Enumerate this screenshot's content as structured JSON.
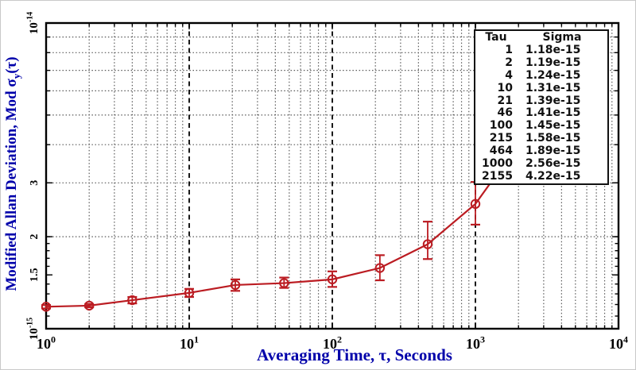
{
  "chart_data": {
    "type": "line",
    "title": "",
    "xlabel": "Averaging Time, τ, Seconds",
    "ylabel_parts": {
      "prefix": "Modified Allan Deviation, Mod σ",
      "sub": "y",
      "suffix": "(τ)"
    },
    "xscale": "log",
    "yscale": "log",
    "xlim": [
      1,
      10000
    ],
    "ylim": [
      1e-15,
      1e-14
    ],
    "grid": true,
    "x_major_ticks": [
      {
        "v": 1,
        "label": "10^0"
      },
      {
        "v": 10,
        "label": "10^1"
      },
      {
        "v": 100,
        "label": "10^2"
      },
      {
        "v": 1000,
        "label": "10^3"
      },
      {
        "v": 10000,
        "label": "10^4"
      }
    ],
    "y_major_ticks": [
      {
        "v": 1e-15,
        "label": "10^-15"
      },
      {
        "v": 1.5e-15,
        "label": "1.5"
      },
      {
        "v": 2e-15,
        "label": "2"
      },
      {
        "v": 3e-15,
        "label": "3"
      },
      {
        "v": 1e-14,
        "label": "10^-14"
      }
    ],
    "series": [
      {
        "name": "modified-allan-deviation",
        "x": [
          1,
          2,
          4,
          10,
          21,
          46,
          100,
          215,
          464,
          1000,
          2155
        ],
        "y": [
          1.18e-15,
          1.19e-15,
          1.24e-15,
          1.31e-15,
          1.39e-15,
          1.41e-15,
          1.45e-15,
          1.58e-15,
          1.89e-15,
          2.56e-15,
          4.22e-15
        ],
        "y_err_lo": [
          1.165e-15,
          1.175e-15,
          1.21e-15,
          1.27e-15,
          1.33e-15,
          1.36e-15,
          1.37e-15,
          1.44e-15,
          1.69e-15,
          2.19e-15,
          3.6e-15
        ],
        "y_err_hi": [
          1.195e-15,
          1.205e-15,
          1.27e-15,
          1.35e-15,
          1.45e-15,
          1.47e-15,
          1.54e-15,
          1.74e-15,
          2.24e-15,
          3.02e-15,
          5e-15
        ]
      }
    ],
    "legend_table": {
      "headers": [
        "Tau",
        "Sigma"
      ],
      "rows": [
        [
          "1",
          "1.18e-15"
        ],
        [
          "2",
          "1.19e-15"
        ],
        [
          "4",
          "1.24e-15"
        ],
        [
          "10",
          "1.31e-15"
        ],
        [
          "21",
          "1.39e-15"
        ],
        [
          "46",
          "1.41e-15"
        ],
        [
          "100",
          "1.45e-15"
        ],
        [
          "215",
          "1.58e-15"
        ],
        [
          "464",
          "1.89e-15"
        ],
        [
          "1000",
          "2.56e-15"
        ],
        [
          "2155",
          "4.22e-15"
        ]
      ]
    },
    "colors": {
      "line": "#bb1c22",
      "marker": "#bb1c22",
      "error_bar": "#bb1c22",
      "axis_text": "#000000",
      "title_text": "#0000aa",
      "grid_minor": "#595959",
      "grid_major": "#000000",
      "frame": "#000000"
    },
    "legend_position": "upper right"
  }
}
